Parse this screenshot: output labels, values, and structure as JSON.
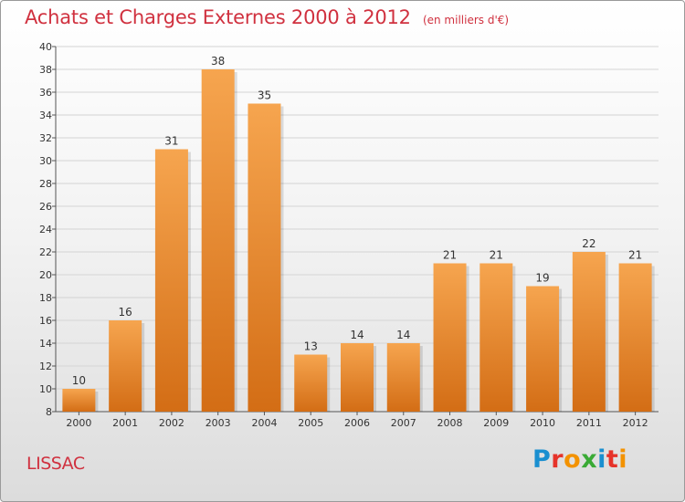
{
  "title": "Achats et Charges Externes 2000 à 2012",
  "subtitle": "(en milliers d'€)",
  "city": "LISSAC",
  "logo": {
    "letters": [
      "P",
      "r",
      "o",
      "x",
      "i",
      "t",
      "i"
    ],
    "colors": [
      "#1a8fd0",
      "#e6332a",
      "#f39200",
      "#3aaa35",
      "#1a8fd0",
      "#e6332a",
      "#f39200"
    ]
  },
  "colors": {
    "bar_top": "#f6a54f",
    "bar_bottom": "#d36d15",
    "text_accent": "#d0313f"
  },
  "chart_data": {
    "type": "bar",
    "title": "Achats et Charges Externes 2000 à 2012",
    "subtitle": "(en milliers d'€)",
    "categories": [
      "2000",
      "2001",
      "2002",
      "2003",
      "2004",
      "2005",
      "2006",
      "2007",
      "2008",
      "2009",
      "2010",
      "2011",
      "2012"
    ],
    "values": [
      10,
      16,
      31,
      38,
      35,
      13,
      14,
      14,
      21,
      21,
      19,
      22,
      21
    ],
    "ylim": [
      8,
      40
    ],
    "yticks": [
      8,
      10,
      12,
      14,
      16,
      18,
      20,
      22,
      24,
      26,
      28,
      30,
      32,
      34,
      36,
      38,
      40
    ],
    "grid": true,
    "legend": "none"
  }
}
